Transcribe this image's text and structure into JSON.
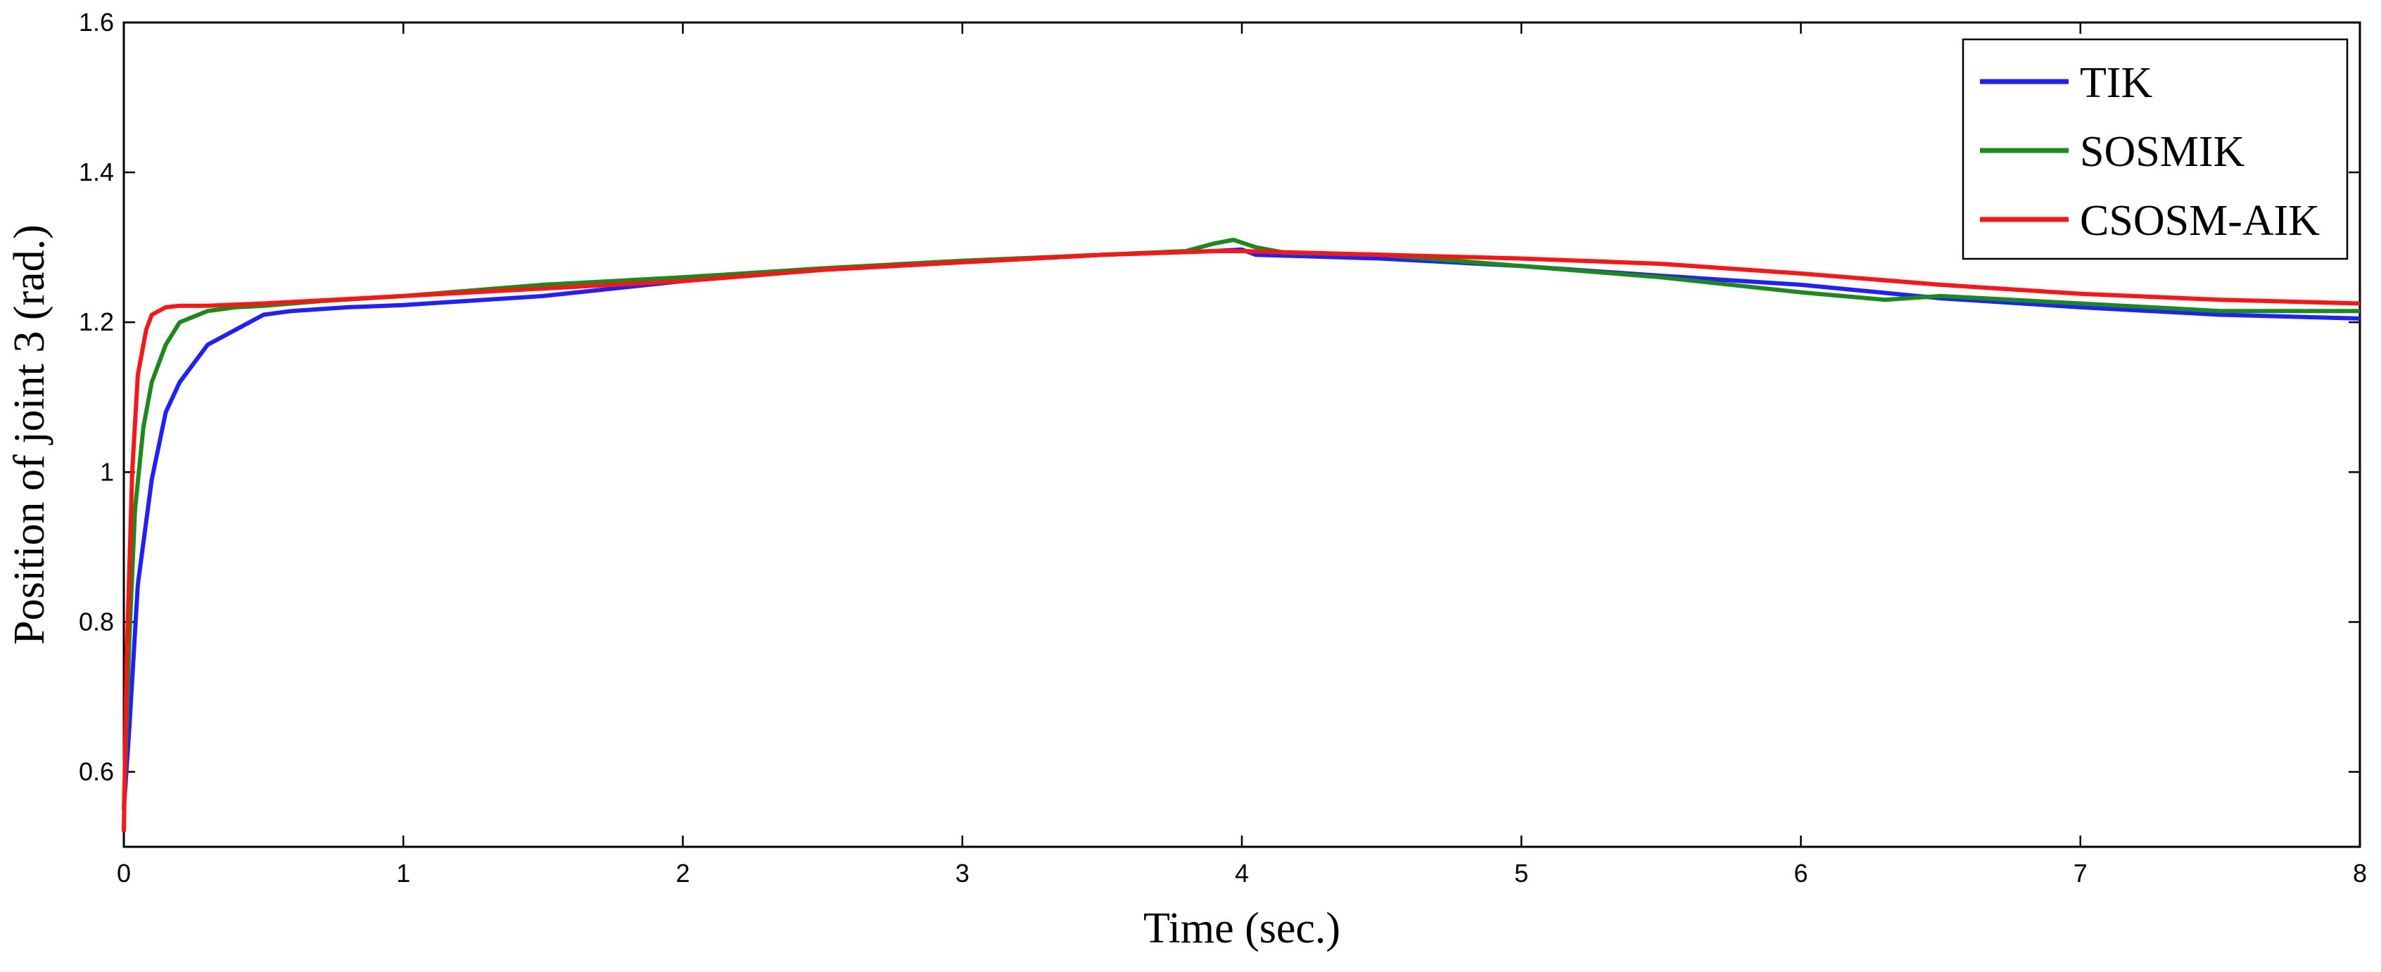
{
  "chart_data": {
    "type": "line",
    "xlabel": "Time (sec.)",
    "ylabel": "Position of joint 3 (rad.)",
    "xlim": [
      0,
      8
    ],
    "ylim": [
      0.5,
      1.6
    ],
    "x_ticks": [
      "0",
      "1",
      "2",
      "3",
      "4",
      "5",
      "6",
      "7",
      "8"
    ],
    "y_ticks": [
      "0.6",
      "0.8",
      "1",
      "1.2",
      "1.4",
      "1.6"
    ],
    "legend_position": "top-right",
    "grid": false,
    "series": [
      {
        "name": "TIK",
        "color": "#1f1fff",
        "x": [
          0,
          0.02,
          0.05,
          0.1,
          0.15,
          0.2,
          0.3,
          0.4,
          0.5,
          0.6,
          0.8,
          1.0,
          1.5,
          2.0,
          2.5,
          3.0,
          3.5,
          3.9,
          4.0,
          4.05,
          4.5,
          5.0,
          5.5,
          6.0,
          6.5,
          7.0,
          7.5,
          8.0
        ],
        "y": [
          0.55,
          0.66,
          0.85,
          0.99,
          1.08,
          1.12,
          1.17,
          1.19,
          1.21,
          1.215,
          1.22,
          1.223,
          1.235,
          1.255,
          1.27,
          1.28,
          1.29,
          1.295,
          1.297,
          1.29,
          1.285,
          1.275,
          1.262,
          1.25,
          1.232,
          1.22,
          1.21,
          1.205
        ]
      },
      {
        "name": "SOSMIK",
        "color": "#1a8a1a",
        "x": [
          0,
          0.02,
          0.04,
          0.07,
          0.1,
          0.15,
          0.2,
          0.3,
          0.4,
          0.5,
          0.7,
          1.0,
          1.5,
          2.0,
          2.5,
          3.0,
          3.5,
          3.8,
          3.9,
          3.97,
          4.05,
          4.15,
          4.5,
          5.0,
          5.5,
          6.0,
          6.3,
          6.5,
          7.0,
          7.5,
          8.0
        ],
        "y": [
          0.55,
          0.78,
          0.95,
          1.06,
          1.12,
          1.17,
          1.2,
          1.215,
          1.22,
          1.222,
          1.228,
          1.235,
          1.25,
          1.26,
          1.272,
          1.282,
          1.29,
          1.295,
          1.305,
          1.31,
          1.3,
          1.293,
          1.29,
          1.275,
          1.26,
          1.24,
          1.23,
          1.235,
          1.225,
          1.215,
          1.215
        ]
      },
      {
        "name": "CSOSM-AIK",
        "color": "#ff1414",
        "x": [
          0,
          0.01,
          0.03,
          0.05,
          0.08,
          0.1,
          0.15,
          0.2,
          0.3,
          0.5,
          1.0,
          1.5,
          2.0,
          2.5,
          3.0,
          3.5,
          3.9,
          4.0,
          4.5,
          5.0,
          5.5,
          6.0,
          6.5,
          7.0,
          7.5,
          8.0
        ],
        "y": [
          0.52,
          0.75,
          1.0,
          1.13,
          1.19,
          1.21,
          1.22,
          1.222,
          1.222,
          1.225,
          1.235,
          1.245,
          1.255,
          1.27,
          1.28,
          1.29,
          1.295,
          1.295,
          1.29,
          1.285,
          1.278,
          1.265,
          1.25,
          1.238,
          1.23,
          1.225
        ]
      }
    ]
  }
}
